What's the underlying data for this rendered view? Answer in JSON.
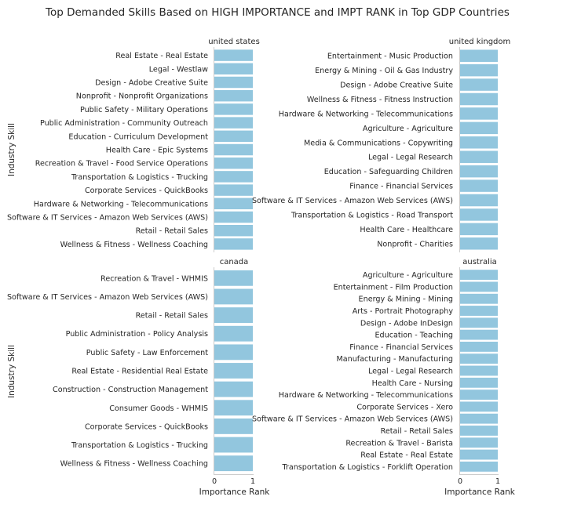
{
  "chart_data": {
    "type": "bar",
    "orientation": "horizontal",
    "title": "Top Demanded Skills Based on HIGH IMPORTANCE and IMPT RANK in Top GDP Countries",
    "ylabel": "Industry Skill",
    "xlabel": "Importance Rank",
    "xlim": [
      0,
      1
    ],
    "xticks": [
      "0",
      "1"
    ],
    "grid": false,
    "bar_color": "#92c6de",
    "panels": [
      {
        "name": "united states",
        "categories": [
          "Real Estate - Real Estate",
          "Legal - Westlaw",
          "Design - Adobe Creative Suite",
          "Nonprofit - Nonprofit Organizations",
          "Public Safety - Military Operations",
          "Public Administration - Community Outreach",
          "Education - Curriculum Development",
          "Health Care - Epic Systems",
          "Recreation & Travel - Food Service Operations",
          "Transportation & Logistics - Trucking",
          "Corporate Services - QuickBooks",
          "Hardware & Networking - Telecommunications",
          "Software & IT Services - Amazon Web Services (AWS)",
          "Retail - Retail Sales",
          "Wellness & Fitness - Wellness Coaching"
        ],
        "values": [
          1,
          1,
          1,
          1,
          1,
          1,
          1,
          1,
          1,
          1,
          1,
          1,
          1,
          1,
          1
        ]
      },
      {
        "name": "united kingdom",
        "categories": [
          "Entertainment - Music Production",
          "Energy & Mining - Oil & Gas Industry",
          "Design - Adobe Creative Suite",
          "Wellness & Fitness - Fitness Instruction",
          "Hardware & Networking - Telecommunications",
          "Agriculture - Agriculture",
          "Media & Communications - Copywriting",
          "Legal - Legal Research",
          "Education - Safeguarding Children",
          "Finance - Financial Services",
          "Software & IT Services - Amazon Web Services (AWS)",
          "Transportation & Logistics - Road Transport",
          "Health Care - Healthcare",
          "Nonprofit - Charities"
        ],
        "values": [
          1,
          1,
          1,
          1,
          1,
          1,
          1,
          1,
          1,
          1,
          1,
          1,
          1,
          1
        ]
      },
      {
        "name": "canada",
        "categories": [
          "Recreation & Travel - WHMIS",
          "Software & IT Services - Amazon Web Services (AWS)",
          "Retail - Retail Sales",
          "Public Administration - Policy Analysis",
          "Public Safety - Law Enforcement",
          "Real Estate - Residential Real Estate",
          "Construction - Construction Management",
          "Consumer Goods - WHMIS",
          "Corporate Services - QuickBooks",
          "Transportation & Logistics - Trucking",
          "Wellness & Fitness - Wellness Coaching"
        ],
        "values": [
          1,
          1,
          1,
          1,
          1,
          1,
          1,
          1,
          1,
          1,
          1
        ]
      },
      {
        "name": "australia",
        "categories": [
          "Agriculture - Agriculture",
          "Entertainment - Film Production",
          "Energy & Mining - Mining",
          "Arts - Portrait Photography",
          "Design - Adobe InDesign",
          "Education - Teaching",
          "Finance - Financial Services",
          "Manufacturing - Manufacturing",
          "Legal - Legal Research",
          "Health Care - Nursing",
          "Hardware & Networking - Telecommunications",
          "Corporate Services - Xero",
          "Software & IT Services - Amazon Web Services (AWS)",
          "Retail - Retail Sales",
          "Recreation & Travel - Barista",
          "Real Estate - Real Estate",
          "Transportation & Logistics - Forklift Operation"
        ],
        "values": [
          1,
          1,
          1,
          1,
          1,
          1,
          1,
          1,
          1,
          1,
          1,
          1,
          1,
          1,
          1,
          1,
          1
        ]
      }
    ]
  }
}
